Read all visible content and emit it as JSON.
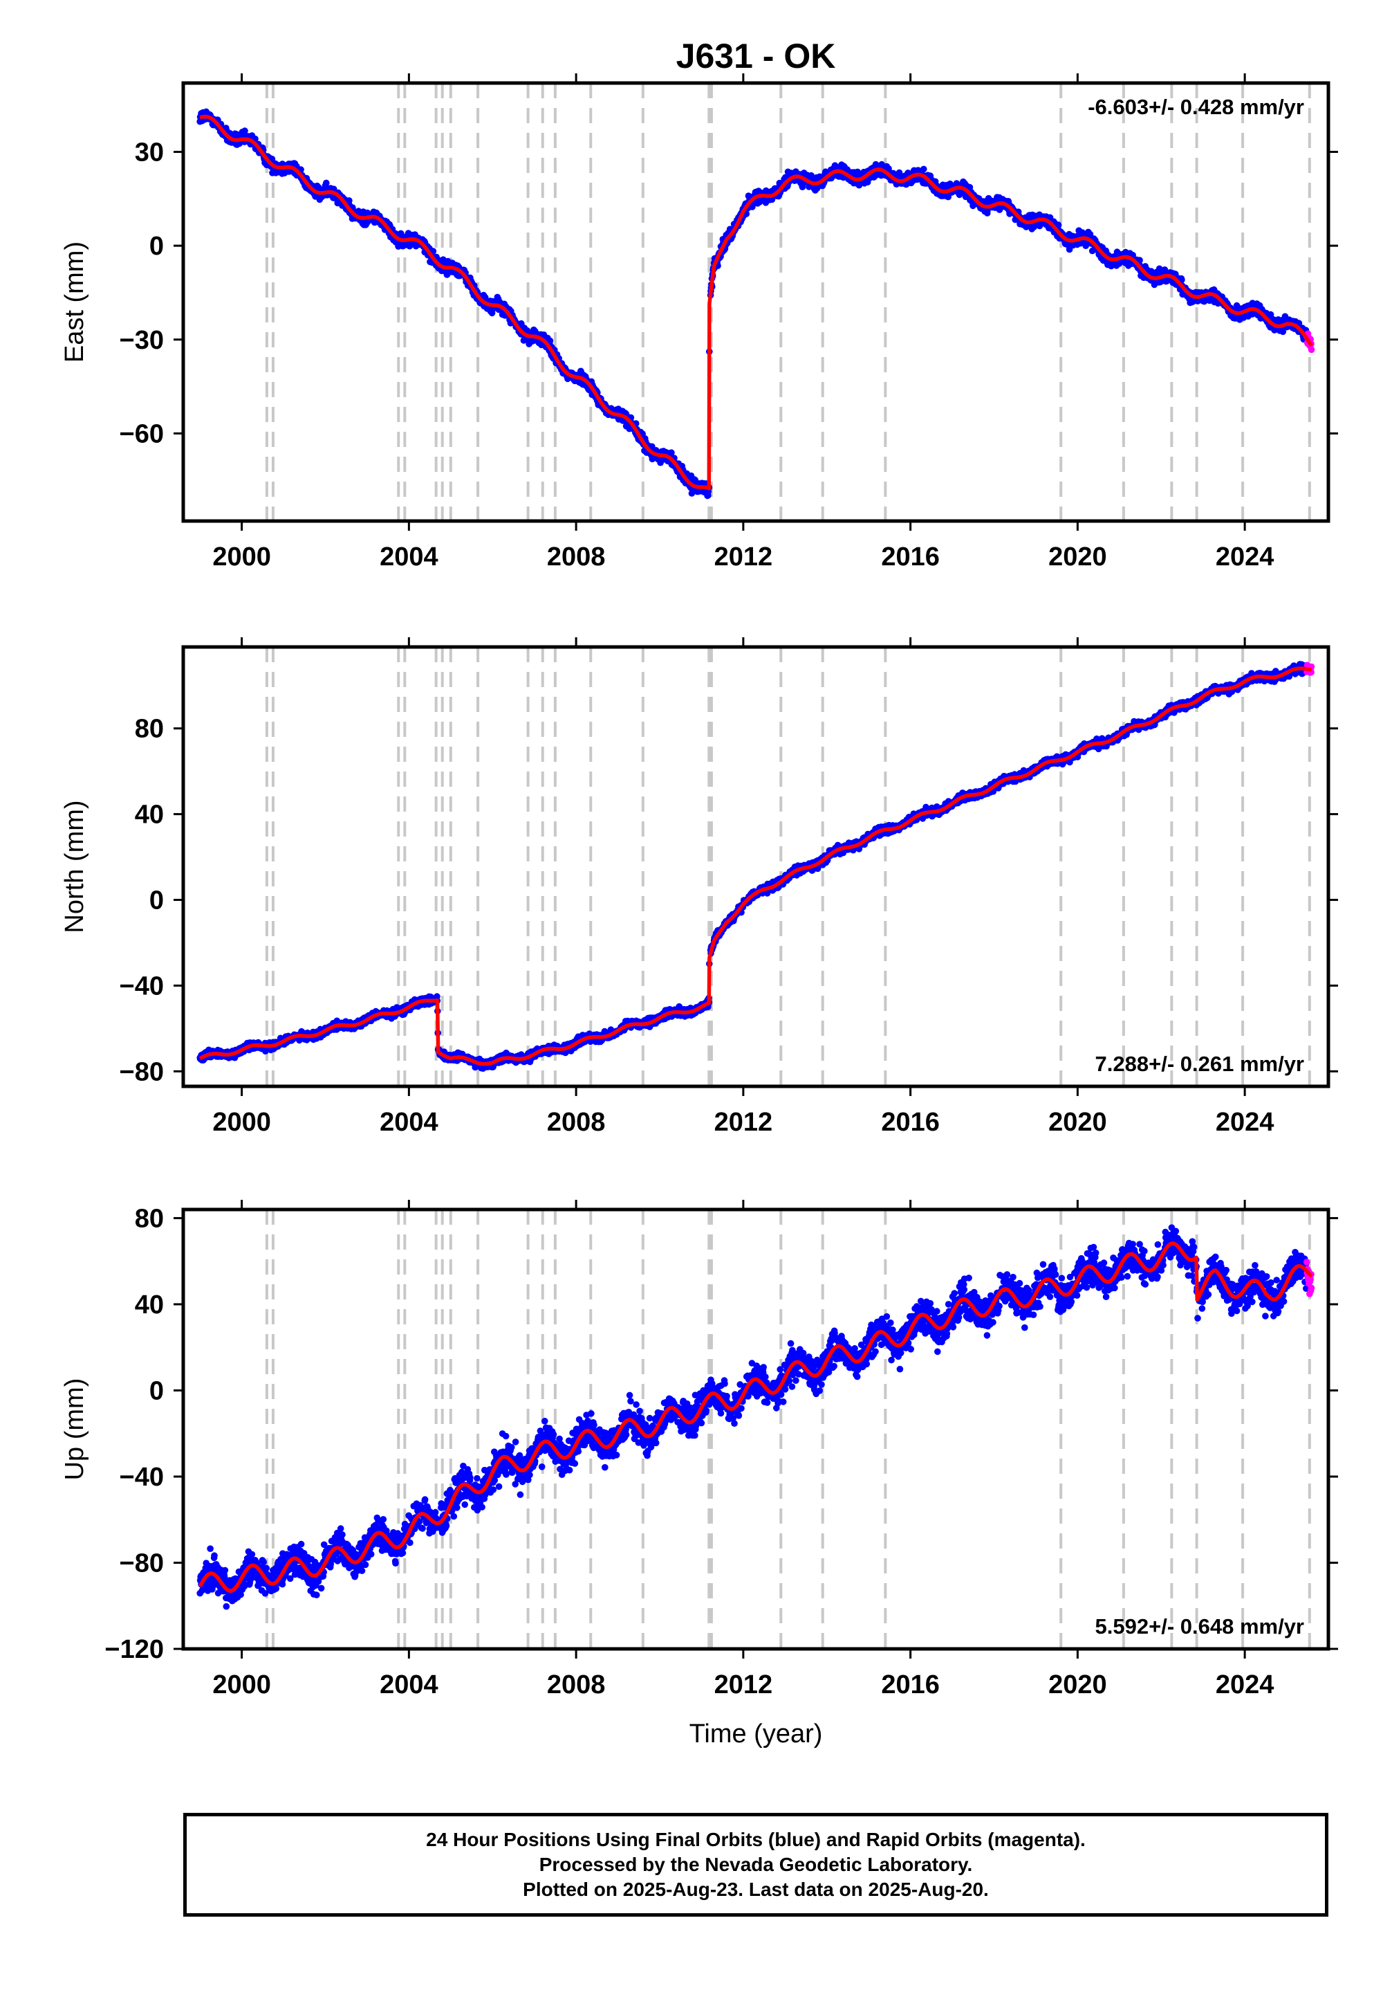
{
  "title": "J631 - OK",
  "xlabel": "Time (year)",
  "colors": {
    "final_orbits": "#0000ff",
    "rapid_orbits": "#ff00ff",
    "model": "#ff0000",
    "event_lines": "#c8c8c8",
    "frame": "#000000"
  },
  "footer": {
    "line1": "24 Hour Positions Using Final Orbits (blue) and Rapid Orbits (magenta).",
    "line2": "Processed by the Nevada Geodetic Laboratory.",
    "line3": "Plotted on 2025-Aug-23. Last data on 2025-Aug-20."
  },
  "chart_data": [
    {
      "type": "scatter",
      "component": "East",
      "ylabel": "East (mm)",
      "rate_label": "-6.603+/- 0.428 mm/yr",
      "rate_position": "top-right",
      "xlim": [
        1998.6,
        2026.0
      ],
      "ylim": [
        -88,
        52
      ],
      "xticks": [
        2000,
        2004,
        2008,
        2012,
        2016,
        2020,
        2024
      ],
      "yticks": [
        -60,
        -30,
        0,
        30
      ],
      "grid": false,
      "event_years": [
        2000.6,
        2000.75,
        2003.75,
        2003.9,
        2004.65,
        2004.8,
        2005.0,
        2005.65,
        2006.85,
        2007.2,
        2007.5,
        2008.35,
        2009.6,
        2011.18,
        2011.24,
        2012.9,
        2013.9,
        2015.4,
        2019.6,
        2021.1,
        2022.25,
        2022.85,
        2023.95,
        2025.55
      ],
      "model_series": {
        "name": "",
        "x": [
          1999.0,
          2000.0,
          2001.0,
          2002.0,
          2003.0,
          2004.0,
          2005.0,
          2006.0,
          2007.0,
          2008.0,
          2009.0,
          2010.0,
          2011.18,
          2011.19,
          2011.3,
          2011.6,
          2012.0,
          2012.5,
          2013.0,
          2014.0,
          2015.0,
          2016.0,
          2017.0,
          2018.0,
          2019.0,
          2020.0,
          2021.0,
          2022.0,
          2023.0,
          2024.0,
          2025.0,
          2025.6
        ],
        "y": [
          41,
          34,
          25,
          17,
          9,
          2,
          -7,
          -19,
          -29,
          -42,
          -54,
          -67,
          -79,
          -20,
          -8,
          3,
          11,
          16,
          20,
          22,
          23,
          22,
          18,
          13,
          8,
          2,
          -4,
          -10,
          -16,
          -21,
          -25,
          -31
        ]
      }
    },
    {
      "type": "scatter",
      "component": "North",
      "ylabel": "North (mm)",
      "rate_label": "7.288+/- 0.261 mm/yr",
      "rate_position": "bottom-right",
      "xlim": [
        1998.6,
        2026.0
      ],
      "ylim": [
        -87,
        118
      ],
      "xticks": [
        2000,
        2004,
        2008,
        2012,
        2016,
        2020,
        2024
      ],
      "yticks": [
        -80,
        -40,
        0,
        40,
        80
      ],
      "grid": false,
      "event_years": [
        2000.6,
        2000.75,
        2003.75,
        2003.9,
        2004.65,
        2004.8,
        2005.0,
        2005.65,
        2006.85,
        2007.2,
        2007.5,
        2008.35,
        2009.6,
        2011.18,
        2011.24,
        2012.9,
        2013.9,
        2015.4,
        2019.6,
        2021.1,
        2022.25,
        2022.85,
        2023.95,
        2025.55
      ],
      "model_series": {
        "name": "",
        "x": [
          1999.0,
          2000.0,
          2001.0,
          2002.0,
          2003.0,
          2004.0,
          2004.68,
          2004.7,
          2005.0,
          2006.0,
          2007.0,
          2008.0,
          2009.0,
          2010.0,
          2011.18,
          2011.19,
          2011.3,
          2011.6,
          2012.0,
          2012.5,
          2013.0,
          2014.0,
          2015.0,
          2016.0,
          2017.0,
          2018.0,
          2019.0,
          2020.0,
          2021.0,
          2022.0,
          2023.0,
          2024.0,
          2025.0,
          2025.6
        ],
        "y": [
          -74,
          -70,
          -66,
          -61,
          -56,
          -50,
          -46,
          -70,
          -74,
          -76,
          -72,
          -67,
          -61,
          -55,
          -49,
          -28,
          -20,
          -10,
          -2,
          5,
          10,
          20,
          29,
          37,
          45,
          53,
          61,
          69,
          77,
          86,
          95,
          102,
          106,
          108
        ]
      }
    },
    {
      "type": "scatter",
      "component": "Up",
      "ylabel": "Up (mm)",
      "rate_label": "5.592+/- 0.648 mm/yr",
      "rate_position": "bottom-right",
      "xlim": [
        1998.6,
        2026.0
      ],
      "ylim": [
        -120,
        84
      ],
      "xticks": [
        2000,
        2004,
        2008,
        2012,
        2016,
        2020,
        2024
      ],
      "yticks": [
        -120,
        -80,
        -40,
        0,
        40,
        80
      ],
      "grid": false,
      "event_years": [
        2000.6,
        2000.75,
        2003.75,
        2003.9,
        2004.65,
        2004.8,
        2005.0,
        2005.65,
        2006.85,
        2007.2,
        2007.5,
        2008.35,
        2009.6,
        2011.18,
        2011.24,
        2012.9,
        2013.9,
        2015.4,
        2019.6,
        2021.1,
        2022.25,
        2022.85,
        2023.95,
        2025.55
      ],
      "model_series": {
        "name": "",
        "x": [
          1999.0,
          2000.0,
          2001.0,
          2002.0,
          2003.0,
          2004.0,
          2005.0,
          2006.0,
          2007.0,
          2008.0,
          2009.0,
          2010.0,
          2011.0,
          2012.0,
          2013.0,
          2014.0,
          2015.0,
          2016.0,
          2017.0,
          2018.0,
          2019.0,
          2020.0,
          2021.0,
          2022.0,
          2022.84,
          2022.86,
          2023.3,
          2024.0,
          2024.5,
          2025.0,
          2025.6
        ],
        "y": [
          -91,
          -87,
          -84,
          -80,
          -73,
          -66,
          -53,
          -38,
          -30,
          -25,
          -20,
          -15,
          -8,
          -2,
          6,
          14,
          20,
          28,
          36,
          41,
          45,
          51,
          57,
          62,
          66,
          46,
          51,
          47,
          45,
          50,
          56
        ]
      }
    }
  ]
}
